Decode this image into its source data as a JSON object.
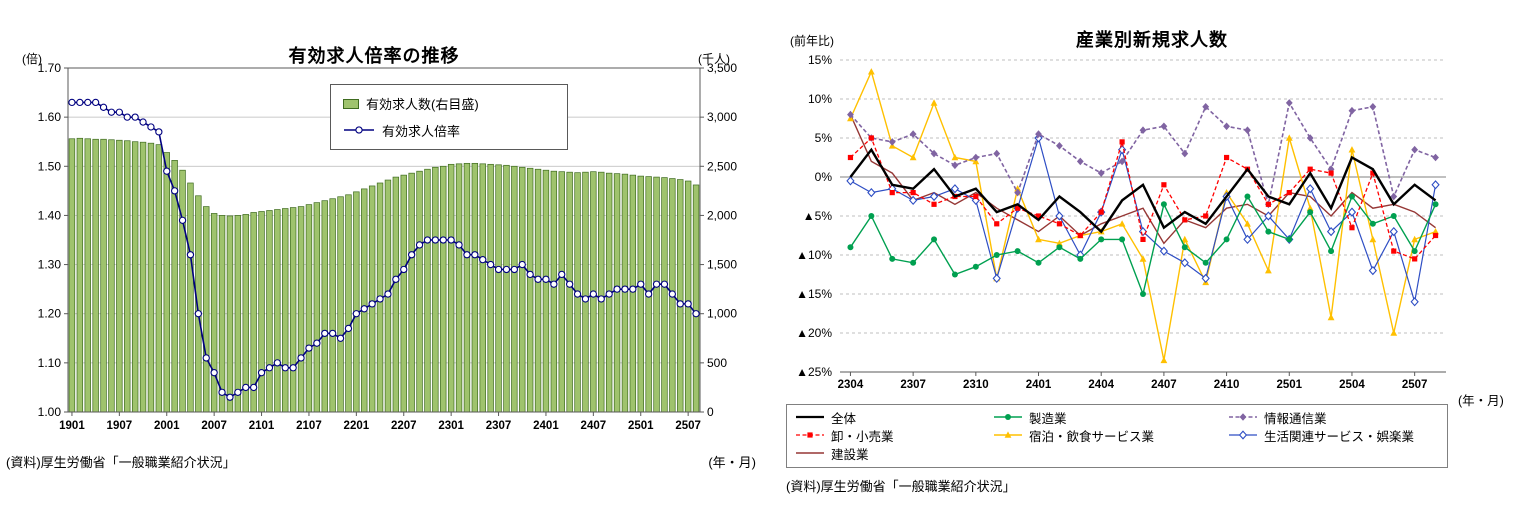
{
  "chart_data": [
    {
      "type": "bar+line",
      "title": "有効求人倍率の推移",
      "left_axis_unit": "(倍)",
      "right_axis_unit": "(千人)",
      "x_axis_note": "(年・月)",
      "source": "(資料)厚生労働省「一般職業紹介状況」",
      "left_ylim": [
        1.0,
        1.7
      ],
      "right_ylim": [
        0,
        3500
      ],
      "left_ticks": {
        "values": [
          1.0,
          1.1,
          1.2,
          1.3,
          1.4,
          1.5,
          1.6,
          1.7
        ],
        "labels": [
          "1.00",
          "1.10",
          "1.20",
          "1.30",
          "1.40",
          "1.50",
          "1.60",
          "1.70"
        ]
      },
      "right_ticks": {
        "values": [
          0,
          500,
          1000,
          1500,
          2000,
          2500,
          3000,
          3500
        ],
        "labels": [
          "0",
          "500",
          "1,000",
          "1,500",
          "2,000",
          "2,500",
          "3,000",
          "3,500"
        ]
      },
      "x_ticks": {
        "indices": [
          0,
          6,
          12,
          18,
          24,
          30,
          36,
          42,
          48,
          54,
          60,
          66,
          72,
          78
        ],
        "labels": [
          "1901",
          "1907",
          "2001",
          "2007",
          "2101",
          "2107",
          "2201",
          "2207",
          "2301",
          "2307",
          "2401",
          "2407",
          "2501",
          "2507"
        ]
      },
      "bar_series": {
        "name": "有効求人数(右目盛)",
        "axis": "right",
        "color": "#9fc36d",
        "border_color": "#3e6b1f",
        "values": [
          2780,
          2785,
          2780,
          2775,
          2775,
          2770,
          2765,
          2760,
          2750,
          2745,
          2735,
          2720,
          2640,
          2560,
          2460,
          2330,
          2200,
          2090,
          2020,
          2000,
          1995,
          2000,
          2010,
          2030,
          2040,
          2050,
          2060,
          2070,
          2080,
          2090,
          2110,
          2130,
          2150,
          2170,
          2190,
          2210,
          2240,
          2270,
          2300,
          2330,
          2360,
          2390,
          2410,
          2430,
          2450,
          2470,
          2490,
          2500,
          2520,
          2525,
          2530,
          2530,
          2525,
          2520,
          2515,
          2510,
          2500,
          2490,
          2480,
          2470,
          2460,
          2450,
          2445,
          2440,
          2435,
          2440,
          2445,
          2440,
          2430,
          2425,
          2420,
          2410,
          2400,
          2395,
          2390,
          2385,
          2375,
          2365,
          2350,
          2310
        ]
      },
      "line_series": {
        "name": "有効求人倍率",
        "axis": "left",
        "color": "#000080",
        "marker": "circle-open",
        "values": [
          1.63,
          1.63,
          1.63,
          1.63,
          1.62,
          1.61,
          1.61,
          1.6,
          1.6,
          1.59,
          1.58,
          1.57,
          1.49,
          1.45,
          1.39,
          1.32,
          1.2,
          1.11,
          1.08,
          1.04,
          1.03,
          1.04,
          1.05,
          1.05,
          1.08,
          1.09,
          1.1,
          1.09,
          1.09,
          1.11,
          1.13,
          1.14,
          1.16,
          1.16,
          1.15,
          1.17,
          1.2,
          1.21,
          1.22,
          1.23,
          1.24,
          1.27,
          1.29,
          1.32,
          1.34,
          1.35,
          1.35,
          1.35,
          1.35,
          1.34,
          1.32,
          1.32,
          1.31,
          1.3,
          1.29,
          1.29,
          1.29,
          1.3,
          1.28,
          1.27,
          1.27,
          1.26,
          1.28,
          1.26,
          1.24,
          1.23,
          1.24,
          1.23,
          1.24,
          1.25,
          1.25,
          1.25,
          1.26,
          1.24,
          1.26,
          1.26,
          1.24,
          1.22,
          1.22,
          1.2
        ]
      }
    },
    {
      "type": "line",
      "title": "産業別新規求人数",
      "y_axis_unit": "(前年比)",
      "x_axis_note": "(年・月)",
      "source": "(資料)厚生労働省「一般職業紹介状況」",
      "ylim": [
        -25,
        15
      ],
      "y_ticks": {
        "values": [
          15,
          10,
          5,
          0,
          -5,
          -10,
          -15,
          -20,
          -25
        ],
        "labels": [
          "15%",
          "10%",
          "5%",
          "0%",
          "▲5%",
          "▲10%",
          "▲15%",
          "▲20%",
          "▲25%"
        ]
      },
      "x_ticks": {
        "indices": [
          0,
          3,
          6,
          9,
          12,
          15,
          18,
          21,
          24,
          27
        ],
        "labels": [
          "2304",
          "2307",
          "2310",
          "2401",
          "2404",
          "2407",
          "2410",
          "2501",
          "2504",
          "2507"
        ]
      },
      "series": [
        {
          "name": "全体",
          "color": "#000000",
          "width": 2.4,
          "dash": "",
          "marker": "none",
          "values": [
            0.0,
            3.5,
            -1.0,
            -1.5,
            1.0,
            -2.5,
            -1.5,
            -4.5,
            -3.5,
            -5.5,
            -2.5,
            -4.5,
            -7.0,
            -3.0,
            -1.0,
            -6.5,
            -4.5,
            -6.0,
            -2.5,
            1.0,
            -2.5,
            -3.5,
            0.5,
            -4.0,
            2.5,
            1.0,
            -3.5,
            -1.0,
            -3.0
          ]
        },
        {
          "name": "卸・小売業",
          "color": "#ff0000",
          "width": 1.3,
          "dash": "4,2.5",
          "marker": "square",
          "values": [
            2.5,
            5.0,
            -2.0,
            -2.0,
            -3.5,
            -2.5,
            -2.5,
            -6.0,
            -4.0,
            -5.0,
            -6.0,
            -7.5,
            -4.5,
            4.5,
            -8.0,
            -1.0,
            -5.5,
            -5.0,
            2.5,
            1.0,
            -3.5,
            -2.0,
            1.0,
            0.5,
            -6.5,
            0.5,
            -9.5,
            -10.5,
            -7.5
          ]
        },
        {
          "name": "建設業",
          "color": "#953735",
          "width": 1.4,
          "dash": "",
          "marker": "none",
          "values": [
            8.0,
            2.0,
            0.5,
            -3.0,
            -2.0,
            -3.5,
            -2.0,
            -4.0,
            -5.5,
            -7.0,
            -5.0,
            -7.5,
            -6.0,
            -5.0,
            -4.0,
            -8.5,
            -5.5,
            -6.5,
            -4.0,
            -3.5,
            -5.0,
            -2.0,
            -2.5,
            -5.0,
            -2.0,
            -4.0,
            -3.5,
            -4.5,
            -6.5
          ]
        },
        {
          "name": "製造業",
          "color": "#00a050",
          "width": 1.4,
          "dash": "",
          "marker": "circle",
          "values": [
            -9.0,
            -5.0,
            -10.5,
            -11.0,
            -8.0,
            -12.5,
            -11.5,
            -10.0,
            -9.5,
            -11.0,
            -9.0,
            -10.5,
            -8.0,
            -8.0,
            -15.0,
            -3.5,
            -9.0,
            -11.0,
            -8.0,
            -2.5,
            -7.0,
            -8.0,
            -4.5,
            -9.5,
            -2.5,
            -6.0,
            -5.0,
            -9.5,
            -3.5
          ]
        },
        {
          "name": "宿泊・飲食サービス業",
          "color": "#ffc000",
          "width": 1.4,
          "dash": "",
          "marker": "triangle",
          "values": [
            7.5,
            13.5,
            4.0,
            2.5,
            9.5,
            2.5,
            2.0,
            -13.0,
            -1.5,
            -8.0,
            -8.5,
            -7.5,
            -7.0,
            -6.0,
            -10.5,
            -23.5,
            -8.0,
            -13.5,
            -2.0,
            -6.0,
            -12.0,
            5.0,
            -4.0,
            -18.0,
            3.5,
            -8.0,
            -20.0,
            -8.0,
            -7.0
          ]
        },
        {
          "name": "情報通信業",
          "color": "#8064a2",
          "width": 1.6,
          "dash": "4,2.5",
          "marker": "diamond",
          "values": [
            8.0,
            5.0,
            4.5,
            5.5,
            3.0,
            1.5,
            2.5,
            3.0,
            -2.0,
            5.5,
            4.0,
            2.0,
            0.5,
            2.0,
            6.0,
            6.5,
            3.0,
            9.0,
            6.5,
            6.0,
            -3.5,
            9.5,
            5.0,
            1.0,
            8.5,
            9.0,
            -2.5,
            3.5,
            2.5
          ]
        },
        {
          "name": "生活関連サービス・娯楽業",
          "color": "#2e4ec4",
          "width": 1.2,
          "dash": "",
          "marker": "diamond-open",
          "values": [
            -0.5,
            -2.0,
            -1.5,
            -3.0,
            -2.5,
            -1.5,
            -3.0,
            -13.0,
            -4.0,
            5.0,
            -5.0,
            -10.0,
            -4.5,
            3.5,
            -7.0,
            -9.5,
            -11.0,
            -13.0,
            -2.5,
            -8.0,
            -5.0,
            -8.0,
            -1.5,
            -7.0,
            -4.5,
            -12.0,
            -7.0,
            -16.0,
            -1.0
          ]
        }
      ]
    }
  ]
}
